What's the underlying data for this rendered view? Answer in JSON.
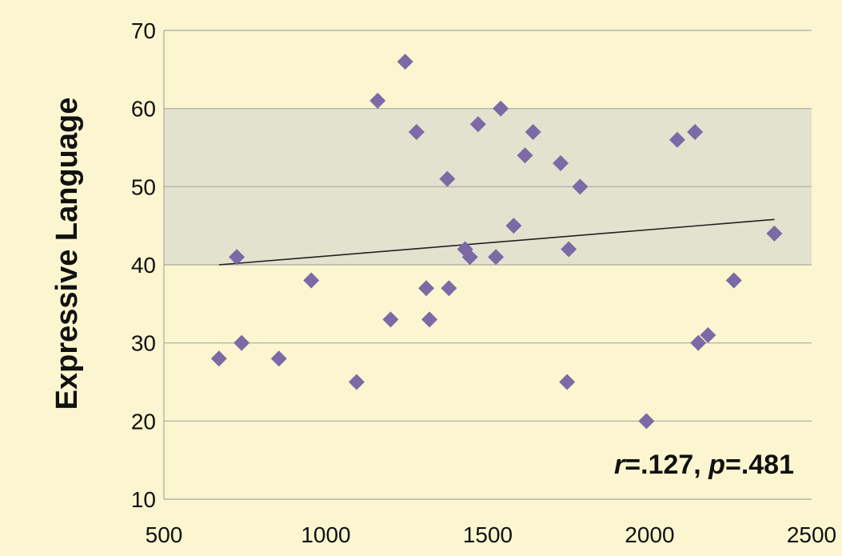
{
  "chart_data": {
    "type": "scatter",
    "ylabel": "Expressive Language",
    "xlabel": "",
    "xlim": [
      500,
      2500
    ],
    "ylim": [
      10,
      70
    ],
    "xticks": [
      500,
      1000,
      1500,
      2000,
      2500
    ],
    "yticks": [
      10,
      20,
      30,
      40,
      50,
      60,
      70
    ],
    "grid": "horizontal",
    "shaded_band": [
      40,
      60
    ],
    "marker": "diamond",
    "point_color": "#7b6aa6",
    "band_color": "#e3e2cf",
    "background_color": "#fbf6d0",
    "points": [
      {
        "x": 670,
        "y": 28
      },
      {
        "x": 725,
        "y": 41
      },
      {
        "x": 740,
        "y": 30
      },
      {
        "x": 855,
        "y": 28
      },
      {
        "x": 955,
        "y": 38
      },
      {
        "x": 1095,
        "y": 25
      },
      {
        "x": 1160,
        "y": 61
      },
      {
        "x": 1200,
        "y": 33
      },
      {
        "x": 1245,
        "y": 66
      },
      {
        "x": 1280,
        "y": 57
      },
      {
        "x": 1310,
        "y": 37
      },
      {
        "x": 1320,
        "y": 33
      },
      {
        "x": 1375,
        "y": 51
      },
      {
        "x": 1380,
        "y": 37
      },
      {
        "x": 1430,
        "y": 42
      },
      {
        "x": 1445,
        "y": 41
      },
      {
        "x": 1470,
        "y": 58
      },
      {
        "x": 1525,
        "y": 41
      },
      {
        "x": 1540,
        "y": 60
      },
      {
        "x": 1580,
        "y": 45
      },
      {
        "x": 1615,
        "y": 54
      },
      {
        "x": 1640,
        "y": 57
      },
      {
        "x": 1725,
        "y": 53
      },
      {
        "x": 1745,
        "y": 25
      },
      {
        "x": 1750,
        "y": 42
      },
      {
        "x": 1785,
        "y": 50
      },
      {
        "x": 1990,
        "y": 20
      },
      {
        "x": 2085,
        "y": 56
      },
      {
        "x": 2140,
        "y": 57
      },
      {
        "x": 2150,
        "y": 30
      },
      {
        "x": 2180,
        "y": 31
      },
      {
        "x": 2260,
        "y": 38
      },
      {
        "x": 2385,
        "y": 44
      }
    ],
    "trendline": {
      "x": [
        670,
        2385
      ],
      "y": [
        40,
        45.8
      ]
    },
    "annotation": {
      "r_symbol": "r",
      "r_value": "=.127, ",
      "p_symbol": "p",
      "p_value": "=.481"
    }
  }
}
